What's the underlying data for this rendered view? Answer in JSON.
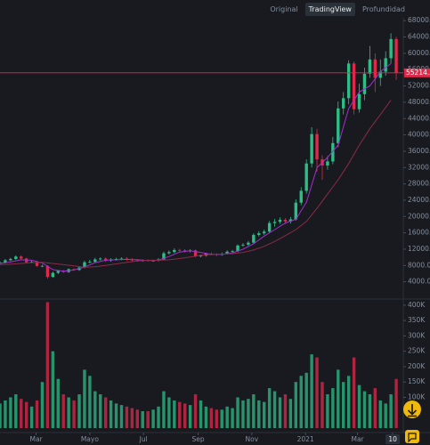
{
  "tabs": [
    "Original",
    "TradingView",
    "Profundidad"
  ],
  "chart_data": {
    "type": "candlestick",
    "x": [
      0,
      6,
      12,
      18,
      24,
      30,
      36,
      42,
      48,
      54,
      60,
      66,
      72,
      78,
      84,
      90,
      96,
      102,
      108,
      114,
      120,
      126,
      132,
      138,
      144,
      150,
      156,
      162,
      168,
      174,
      180,
      186,
      192,
      198,
      204,
      210,
      216,
      222,
      228,
      234,
      240,
      246,
      252,
      258,
      264,
      270,
      276,
      282,
      288,
      294,
      300,
      306,
      312,
      318,
      324,
      330,
      336,
      342,
      348,
      354,
      360,
      366,
      372,
      378,
      384,
      390,
      396,
      402,
      408,
      414,
      420,
      426,
      432,
      438,
      444,
      450
    ],
    "open": [
      8600,
      8700,
      9300,
      9600,
      10200,
      9700,
      8800,
      8900,
      7900,
      7900,
      5200,
      6200,
      6700,
      6400,
      7100,
      6900,
      7500,
      8800,
      8900,
      9500,
      9700,
      9200,
      9500,
      9600,
      9700,
      9500,
      9300,
      9100,
      9300,
      9200,
      9200,
      9500,
      11000,
      11300,
      11800,
      11700,
      11500,
      11700,
      10300,
      10400,
      10900,
      10800,
      10600,
      10900,
      11400,
      11500,
      12900,
      13100,
      13600,
      15500,
      15900,
      16300,
      18400,
      18700,
      19200,
      18800,
      19300,
      23400,
      26300,
      33000,
      40200,
      34000,
      32500,
      33500,
      38000,
      46500,
      49000,
      57500,
      46300,
      50000,
      55000,
      58500,
      54000,
      55500,
      58800,
      63500
    ],
    "high": [
      9000,
      9600,
      9900,
      10500,
      10500,
      9900,
      9200,
      9200,
      8200,
      8100,
      6500,
      6900,
      6900,
      7300,
      7300,
      7800,
      9200,
      9400,
      9900,
      10000,
      10000,
      9800,
      9900,
      10000,
      10000,
      9800,
      9600,
      9500,
      9500,
      9400,
      9800,
      11400,
      11700,
      12200,
      12100,
      12000,
      12000,
      11900,
      10700,
      11100,
      11200,
      11000,
      11200,
      11700,
      11800,
      13200,
      13500,
      14000,
      15900,
      16400,
      16800,
      18900,
      19400,
      19800,
      19600,
      19900,
      24200,
      27200,
      34000,
      41900,
      41500,
      35000,
      34800,
      39500,
      48200,
      50500,
      58300,
      58000,
      52600,
      56500,
      61800,
      60000,
      58500,
      60500,
      64900,
      64000
    ],
    "low": [
      8400,
      8500,
      9100,
      9400,
      9400,
      8500,
      8600,
      7700,
      7600,
      4800,
      5000,
      5900,
      6200,
      6200,
      6700,
      6700,
      7300,
      8500,
      8600,
      9200,
      8900,
      8900,
      9200,
      9300,
      9200,
      9000,
      8900,
      8900,
      9000,
      9000,
      9000,
      9300,
      10700,
      11000,
      11400,
      11200,
      11200,
      10000,
      10000,
      10200,
      10500,
      10300,
      10400,
      10700,
      11100,
      11300,
      12600,
      12800,
      13300,
      15100,
      15500,
      16000,
      17500,
      18200,
      18200,
      18300,
      19000,
      22800,
      25600,
      32000,
      31000,
      29000,
      31500,
      32800,
      37000,
      45000,
      47500,
      45000,
      45500,
      48500,
      54000,
      50500,
      52000,
      54500,
      57500,
      53500
    ],
    "close": [
      8700,
      9300,
      9600,
      10200,
      9700,
      8800,
      8900,
      7900,
      7900,
      5200,
      6200,
      6700,
      6400,
      7100,
      6900,
      7500,
      8800,
      8900,
      9500,
      9700,
      9200,
      9500,
      9600,
      9700,
      9500,
      9300,
      9100,
      9300,
      9200,
      9200,
      9500,
      11000,
      11300,
      11800,
      11700,
      11500,
      11700,
      10300,
      10400,
      10900,
      10800,
      10600,
      10900,
      11400,
      11500,
      12900,
      13100,
      13600,
      15500,
      15900,
      16300,
      18400,
      18700,
      19200,
      18800,
      19300,
      23400,
      26300,
      33000,
      40200,
      34000,
      32500,
      33500,
      38000,
      46500,
      49000,
      57500,
      46300,
      50000,
      55000,
      58500,
      54000,
      55500,
      58800,
      63500,
      55214.36
    ],
    "volume": [
      80000,
      90000,
      100000,
      110000,
      95000,
      85000,
      70000,
      90000,
      150000,
      410000,
      250000,
      160000,
      110000,
      100000,
      90000,
      110000,
      190000,
      170000,
      120000,
      110000,
      100000,
      90000,
      80000,
      75000,
      70000,
      65000,
      60000,
      55000,
      55000,
      60000,
      70000,
      120000,
      100000,
      90000,
      85000,
      80000,
      75000,
      110000,
      90000,
      70000,
      65000,
      60000,
      60000,
      70000,
      65000,
      100000,
      90000,
      95000,
      110000,
      90000,
      85000,
      130000,
      120000,
      100000,
      110000,
      95000,
      150000,
      170000,
      180000,
      240000,
      230000,
      150000,
      110000,
      130000,
      190000,
      150000,
      170000,
      230000,
      140000,
      120000,
      110000,
      130000,
      90000,
      80000,
      110000,
      160000
    ],
    "up_color": "#2ebd85",
    "down_color": "#e0294a",
    "last_price_color": "#e0294a",
    "ma": [
      {
        "color": "#a32ed1",
        "x": [
          0,
          12,
          24,
          36,
          48,
          60,
          72,
          84,
          96,
          108,
          120,
          132,
          144,
          156,
          168,
          180,
          192,
          204,
          216,
          228,
          240,
          252,
          264,
          276,
          288,
          300,
          312,
          324,
          336,
          348,
          360,
          372,
          384,
          396,
          408,
          420,
          432,
          444
        ],
        "values": [
          8500,
          8900,
          9400,
          9300,
          8600,
          7000,
          6600,
          6900,
          7600,
          8700,
          9300,
          9400,
          9500,
          9400,
          9200,
          9300,
          10200,
          11300,
          11600,
          11200,
          10700,
          10700,
          11100,
          12000,
          13300,
          15200,
          16800,
          18400,
          19300,
          23500,
          32000,
          34500,
          37500,
          46500,
          50500,
          52000,
          55500,
          57500
        ]
      },
      {
        "color": "#8c2a45",
        "x": [
          0,
          12,
          24,
          36,
          48,
          60,
          72,
          84,
          96,
          108,
          120,
          132,
          144,
          156,
          168,
          180,
          192,
          204,
          216,
          228,
          240,
          252,
          264,
          276,
          288,
          300,
          312,
          324,
          336,
          348,
          360,
          372,
          384,
          396,
          408,
          420,
          432,
          444
        ],
        "values": [
          8200,
          8300,
          8500,
          8700,
          8800,
          8500,
          8200,
          7900,
          7600,
          7700,
          8000,
          8400,
          8800,
          9100,
          9300,
          9300,
          9400,
          9700,
          10100,
          10500,
          10700,
          10800,
          10900,
          11200,
          11800,
          12700,
          13900,
          15300,
          16800,
          18800,
          22000,
          25500,
          29000,
          33000,
          37500,
          41500,
          45000,
          48500
        ]
      }
    ],
    "xlim": [
      0,
      456
    ],
    "xticks": [
      {
        "value": 41,
        "label": "Mar"
      },
      {
        "value": 102,
        "label": "Mayo"
      },
      {
        "value": 163,
        "label": "Jul"
      },
      {
        "value": 225,
        "label": "Sep"
      },
      {
        "value": 286,
        "label": "Nov"
      },
      {
        "value": 347,
        "label": "2021"
      },
      {
        "value": 406,
        "label": "Mar"
      },
      {
        "value": 446,
        "label": "10"
      }
    ],
    "ylim": [
      0,
      68700
    ],
    "yticks": [
      {
        "value": 4000,
        "label": "4000.00"
      },
      {
        "value": 8000,
        "label": "8000.00"
      },
      {
        "value": 12000,
        "label": "12000.00"
      },
      {
        "value": 16000,
        "label": "16000.00"
      },
      {
        "value": 20000,
        "label": "20000.00"
      },
      {
        "value": 24000,
        "label": "24000.00"
      },
      {
        "value": 28000,
        "label": "28000.00"
      },
      {
        "value": 32000,
        "label": "32000.00"
      },
      {
        "value": 36000,
        "label": "36000.00"
      },
      {
        "value": 40000,
        "label": "40000.00"
      },
      {
        "value": 44000,
        "label": "44000.00"
      },
      {
        "value": 48000,
        "label": "48000.00"
      },
      {
        "value": 52000,
        "label": "52000.00"
      },
      {
        "value": 56000,
        "label": "56000.00"
      },
      {
        "value": 60000,
        "label": "60000.00"
      },
      {
        "value": 64000,
        "label": "64000.00"
      },
      {
        "value": 68000,
        "label": "68000.00"
      }
    ],
    "volume_ylim": [
      0,
      420000
    ],
    "volume_yticks": [
      {
        "value": 50000,
        "label": "50K"
      },
      {
        "value": 100000,
        "label": "100K"
      },
      {
        "value": 150000,
        "label": "150K"
      },
      {
        "value": 200000,
        "label": "200K"
      },
      {
        "value": 250000,
        "label": "250K"
      },
      {
        "value": 300000,
        "label": "300K"
      },
      {
        "value": 350000,
        "label": "350K"
      },
      {
        "value": 400000,
        "label": "400K"
      }
    ]
  }
}
